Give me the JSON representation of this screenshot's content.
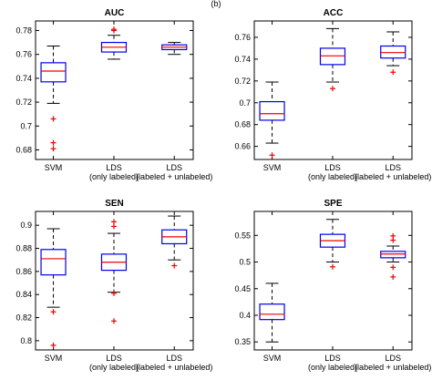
{
  "header_fragment": "(b)",
  "chart_data": [
    {
      "type": "box",
      "title": "AUC",
      "categories": [
        [
          "SVM"
        ],
        [
          "LDS",
          "(only labeled)"
        ],
        [
          "LDS",
          "(labeled + unlabeled)"
        ]
      ],
      "ylim": [
        0.672,
        0.788
      ],
      "yticks": [
        0.68,
        0.7,
        0.72,
        0.74,
        0.76,
        0.78
      ],
      "ytick_labels": [
        "0.68",
        "0.7",
        "0.72",
        "0.74",
        "0.76",
        "0.78"
      ],
      "boxes": [
        {
          "whisker_low": 0.719,
          "q1": 0.737,
          "median": 0.746,
          "q3": 0.753,
          "whisker_high": 0.767,
          "outliers": [
            0.706,
            0.686,
            0.681
          ]
        },
        {
          "whisker_low": 0.756,
          "q1": 0.762,
          "median": 0.766,
          "q3": 0.77,
          "whisker_high": 0.776,
          "outliers": [
            0.78,
            0.781
          ]
        },
        {
          "whisker_low": 0.76,
          "q1": 0.764,
          "median": 0.766,
          "q3": 0.768,
          "whisker_high": 0.77,
          "outliers": []
        }
      ]
    },
    {
      "type": "box",
      "title": "ACC",
      "categories": [
        [
          "SVM"
        ],
        [
          "LDS",
          "(only labeled)"
        ],
        [
          "LDS",
          "(labeled + unlabeled)"
        ]
      ],
      "ylim": [
        0.648,
        0.775
      ],
      "yticks": [
        0.66,
        0.68,
        0.7,
        0.72,
        0.74,
        0.76
      ],
      "ytick_labels": [
        "0.66",
        "0.68",
        "0.7",
        "0.72",
        "0.74",
        "0.76"
      ],
      "boxes": [
        {
          "whisker_low": 0.663,
          "q1": 0.684,
          "median": 0.69,
          "q3": 0.701,
          "whisker_high": 0.719,
          "outliers": [
            0.652
          ]
        },
        {
          "whisker_low": 0.719,
          "q1": 0.735,
          "median": 0.743,
          "q3": 0.75,
          "whisker_high": 0.768,
          "outliers": [
            0.713
          ]
        },
        {
          "whisker_low": 0.734,
          "q1": 0.741,
          "median": 0.746,
          "q3": 0.752,
          "whisker_high": 0.765,
          "outliers": [
            0.728
          ]
        }
      ]
    },
    {
      "type": "box",
      "title": "SEN",
      "categories": [
        [
          "SVM"
        ],
        [
          "LDS",
          "(only labeled)"
        ],
        [
          "LDS",
          "(labeled + unlabeled)"
        ]
      ],
      "ylim": [
        0.792,
        0.912
      ],
      "yticks": [
        0.8,
        0.82,
        0.84,
        0.86,
        0.88,
        0.9
      ],
      "ytick_labels": [
        "0.8",
        "0.82",
        "0.84",
        "0.86",
        "0.88",
        "0.9"
      ],
      "boxes": [
        {
          "whisker_low": 0.829,
          "q1": 0.857,
          "median": 0.871,
          "q3": 0.879,
          "whisker_high": 0.897,
          "outliers": [
            0.825,
            0.796
          ]
        },
        {
          "whisker_low": 0.842,
          "q1": 0.861,
          "median": 0.868,
          "q3": 0.875,
          "whisker_high": 0.893,
          "outliers": [
            0.903,
            0.899,
            0.841,
            0.817
          ]
        },
        {
          "whisker_low": 0.87,
          "q1": 0.884,
          "median": 0.89,
          "q3": 0.896,
          "whisker_high": 0.908,
          "outliers": [
            0.865
          ]
        }
      ]
    },
    {
      "type": "box",
      "title": "SPE",
      "categories": [
        [
          "SVM"
        ],
        [
          "LDS",
          "(only labeled)"
        ],
        [
          "LDS",
          "(labeled + unlabeled)"
        ]
      ],
      "ylim": [
        0.335,
        0.595
      ],
      "yticks": [
        0.35,
        0.4,
        0.45,
        0.5,
        0.55
      ],
      "ytick_labels": [
        "0.35",
        "0.4",
        "0.45",
        "0.5",
        "0.55"
      ],
      "boxes": [
        {
          "whisker_low": 0.35,
          "q1": 0.392,
          "median": 0.402,
          "q3": 0.421,
          "whisker_high": 0.46,
          "outliers": []
        },
        {
          "whisker_low": 0.5,
          "q1": 0.528,
          "median": 0.54,
          "q3": 0.552,
          "whisker_high": 0.58,
          "outliers": [
            0.491
          ]
        },
        {
          "whisker_low": 0.5,
          "q1": 0.508,
          "median": 0.515,
          "q3": 0.52,
          "whisker_high": 0.53,
          "outliers": [
            0.549,
            0.541,
            0.49,
            0.472
          ]
        }
      ]
    }
  ]
}
